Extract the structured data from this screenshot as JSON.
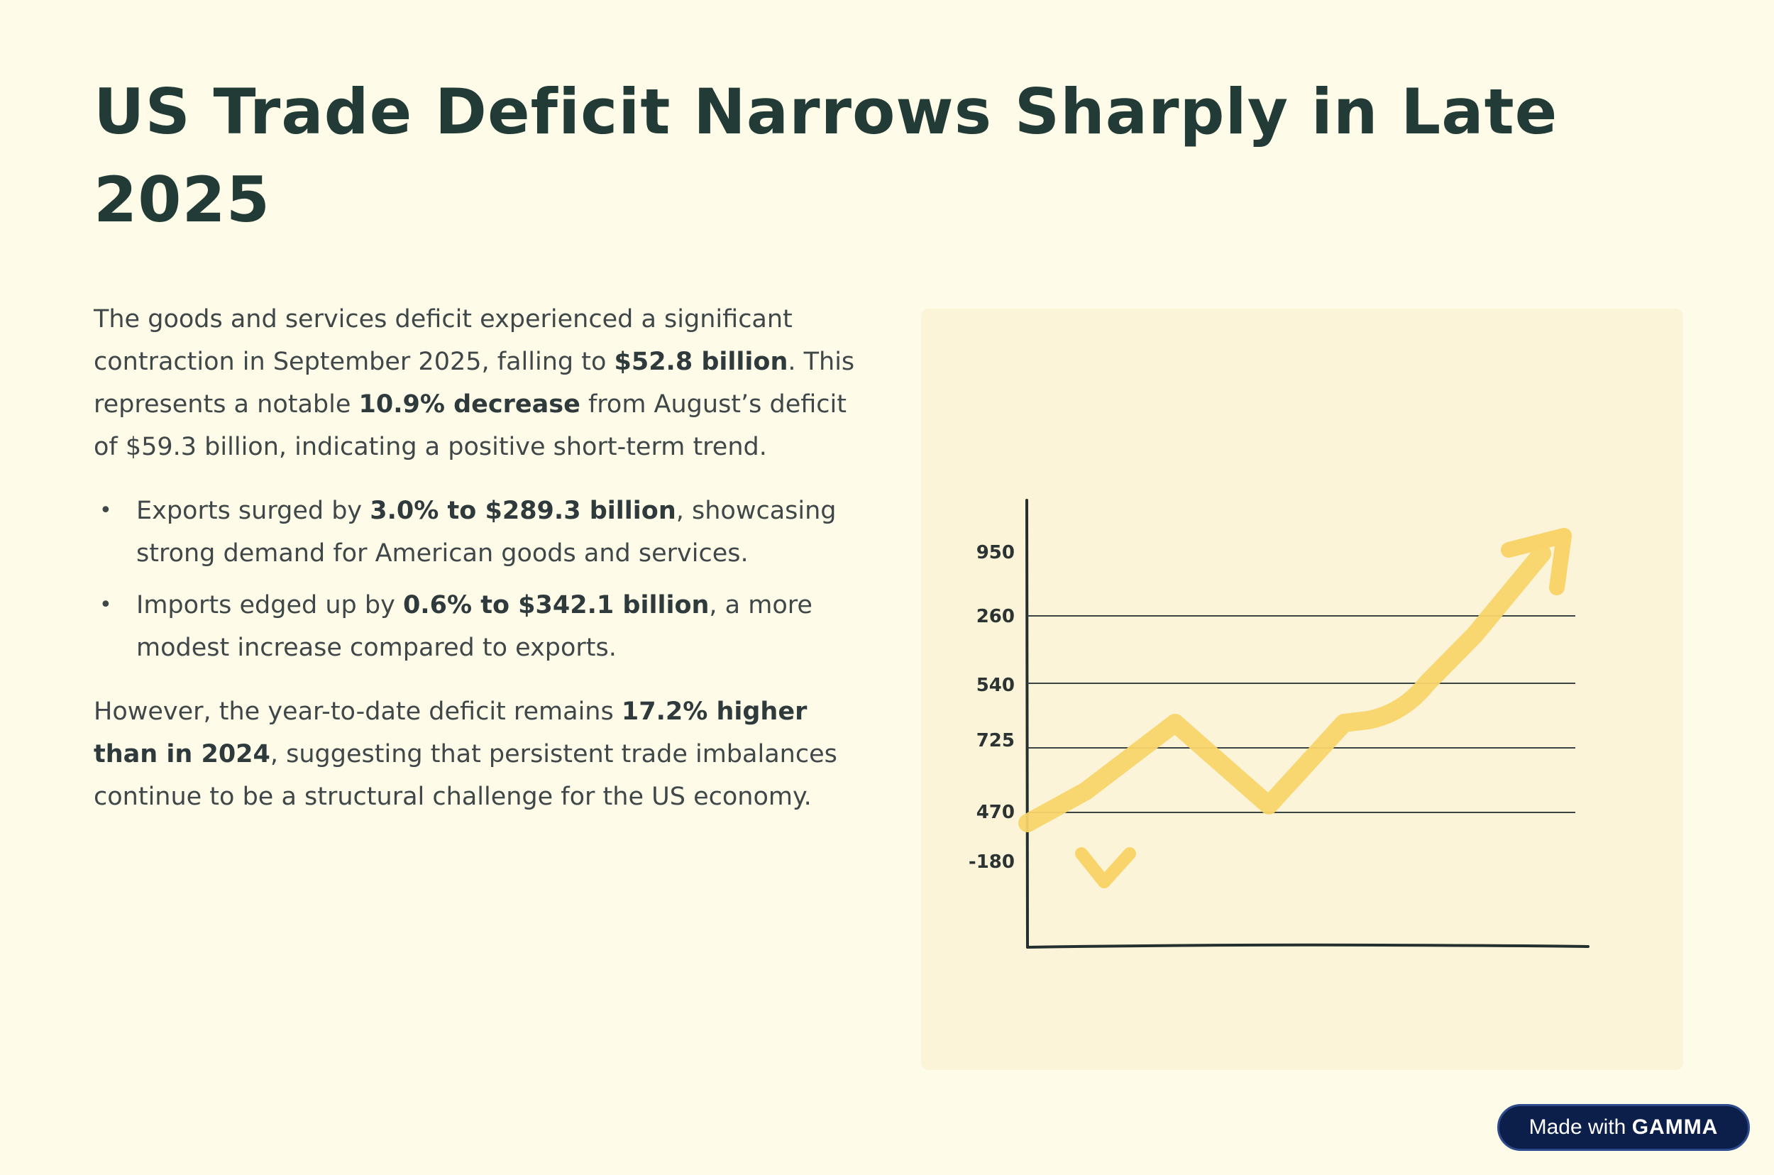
{
  "slide": {
    "title": "US Trade Deficit Narrows Sharply in Late 2025"
  },
  "intro": {
    "t1": "The goods and services deficit experienced a significant contraction in September 2025, falling to ",
    "b1": "$52.8 billion",
    "t2": ". This represents a notable ",
    "b2": "10.9% decrease",
    "t3": " from August’s deficit of $59.3 billion, indicating a positive short-term trend."
  },
  "bullets": [
    {
      "pre": "Exports surged by ",
      "bold": "3.0% to $289.3 billion",
      "post": ", showcasing strong demand for American goods and services."
    },
    {
      "pre": "Imports edged up by ",
      "bold": "0.6% to $342.1 billion",
      "post": ", a more modest increase compared to exports."
    }
  ],
  "closing": {
    "t1": "However, the year-to-date deficit remains ",
    "b1": "17.2% higher than in 2024",
    "t2": ", suggesting that persistent trade imbalances continue to be a structural challenge for the US economy."
  },
  "illustration": {
    "y_labels": [
      "950",
      "260",
      "540",
      "725",
      "470",
      "-180"
    ],
    "line_color": "#f8d46a",
    "axis_color": "#23302f"
  },
  "badge": {
    "prefix": "Made with ",
    "brand": "GAMMA"
  }
}
